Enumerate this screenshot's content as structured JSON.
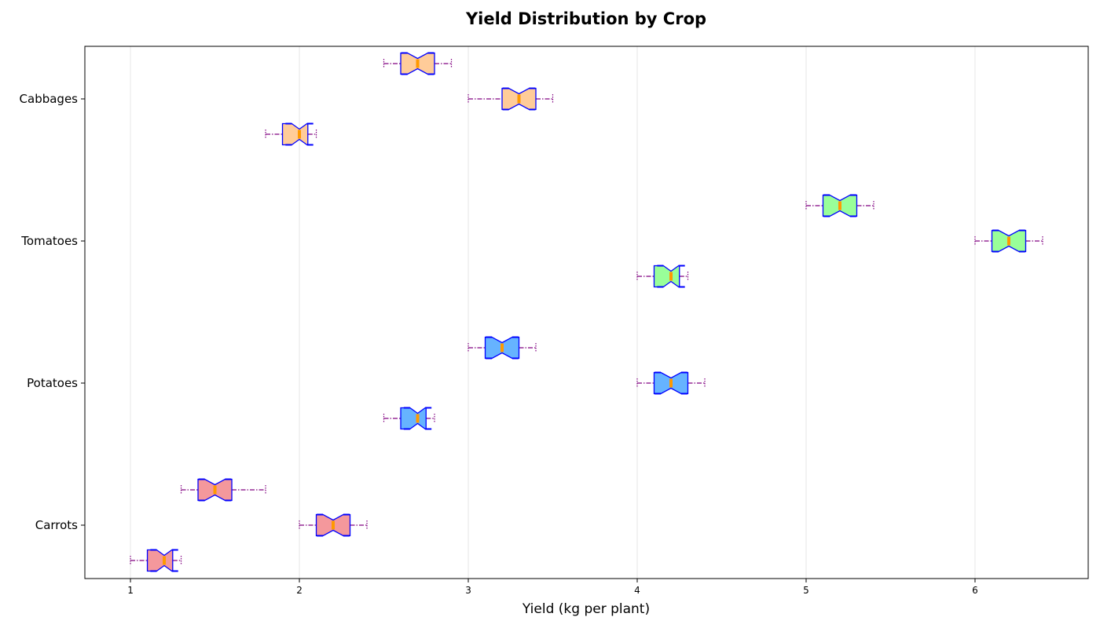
{
  "chart_data": {
    "type": "boxplot",
    "orientation": "horizontal",
    "notched": true,
    "title": "Yield Distribution by Crop",
    "xlabel": "Yield (kg per plant)",
    "ylabel": "",
    "xlim": [
      0.73,
      6.67
    ],
    "xticks": [
      "1",
      "2",
      "3",
      "4",
      "5",
      "6"
    ],
    "grid": "x",
    "categories": [
      "Carrots",
      "Potatoes",
      "Tomatoes",
      "Cabbages"
    ],
    "colors": {
      "Carrots": "#f4989c",
      "Potatoes": "#66b3ff",
      "Tomatoes": "#99ff99",
      "Cabbages": "#ffcc99",
      "box_edge": "#0000ff",
      "median": "#ff9900",
      "whisker": "#800080"
    },
    "boxes": [
      {
        "category": "Carrots",
        "offset": -1,
        "min": 1.3,
        "q1": 1.4,
        "median": 1.5,
        "q3": 1.6,
        "max": 1.8
      },
      {
        "category": "Carrots",
        "offset": 0,
        "min": 2.0,
        "q1": 2.1,
        "median": 2.2,
        "q3": 2.3,
        "max": 2.4
      },
      {
        "category": "Carrots",
        "offset": 1,
        "min": 1.0,
        "q1": 1.1,
        "median": 1.2,
        "q3": 1.25,
        "max": 1.3
      },
      {
        "category": "Potatoes",
        "offset": -1,
        "min": 3.0,
        "q1": 3.1,
        "median": 3.2,
        "q3": 3.3,
        "max": 3.4
      },
      {
        "category": "Potatoes",
        "offset": 0,
        "min": 4.0,
        "q1": 4.1,
        "median": 4.2,
        "q3": 4.3,
        "max": 4.4
      },
      {
        "category": "Potatoes",
        "offset": 1,
        "min": 2.5,
        "q1": 2.6,
        "median": 2.7,
        "q3": 2.75,
        "max": 2.8
      },
      {
        "category": "Tomatoes",
        "offset": -1,
        "min": 5.0,
        "q1": 5.1,
        "median": 5.2,
        "q3": 5.3,
        "max": 5.4
      },
      {
        "category": "Tomatoes",
        "offset": 0,
        "min": 6.0,
        "q1": 6.1,
        "median": 6.2,
        "q3": 6.3,
        "max": 6.4
      },
      {
        "category": "Tomatoes",
        "offset": 1,
        "min": 4.0,
        "q1": 4.1,
        "median": 4.2,
        "q3": 4.25,
        "max": 4.3
      },
      {
        "category": "Cabbages",
        "offset": -1,
        "min": 2.5,
        "q1": 2.6,
        "median": 2.7,
        "q3": 2.8,
        "max": 2.9
      },
      {
        "category": "Cabbages",
        "offset": 0,
        "min": 3.0,
        "q1": 3.2,
        "median": 3.3,
        "q3": 3.4,
        "max": 3.5
      },
      {
        "category": "Cabbages",
        "offset": 1,
        "min": 1.8,
        "q1": 1.9,
        "median": 2.0,
        "q3": 2.05,
        "max": 2.1
      }
    ]
  }
}
